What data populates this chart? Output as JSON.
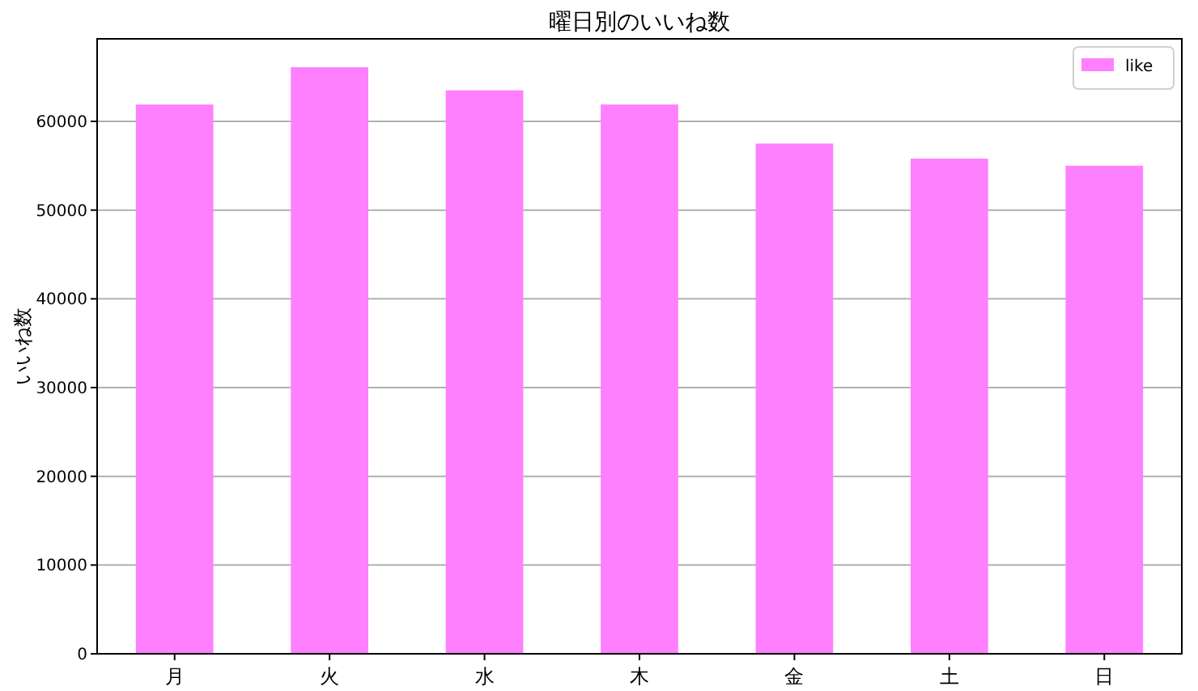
{
  "chart_data": {
    "type": "bar",
    "title": "曜日別のいいね数",
    "ylabel": "いいね数",
    "categories": [
      "月",
      "火",
      "水",
      "木",
      "金",
      "土",
      "日"
    ],
    "series": [
      {
        "name": "like",
        "color": "#ff80ff",
        "values": [
          61900,
          66100,
          63500,
          61900,
          57500,
          55800,
          55000
        ]
      }
    ],
    "ylim": [
      0,
      69300
    ],
    "yticks": [
      0,
      10000,
      20000,
      30000,
      40000,
      50000,
      60000
    ],
    "grid": "y",
    "legend": "top right"
  }
}
